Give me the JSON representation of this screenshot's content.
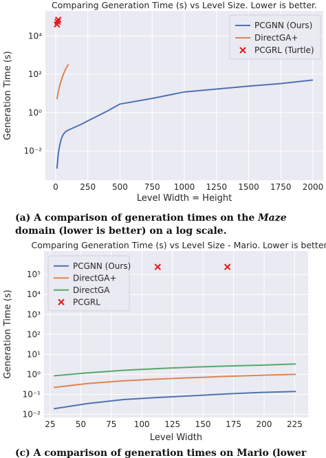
{
  "colors": {
    "plot_bg": "#eaeaf2",
    "grid": "#ffffff",
    "blue": "#4c72b0",
    "orange": "#dd8452",
    "green": "#55a868",
    "red": "#e41a1c",
    "text": "#262626"
  },
  "chart_data": [
    {
      "type": "line",
      "title": "Comparing Generation Time (s) vs Level Size. Lower is better.",
      "xlabel": "Level Width = Height",
      "ylabel": "Generation Time (s)",
      "yscale": "log",
      "xlim": [
        -80,
        2080
      ],
      "ylim": [
        0.0003,
        200000
      ],
      "xticks": [
        0,
        250,
        500,
        750,
        1000,
        1250,
        1500,
        1750,
        2000
      ],
      "xtick_labels": [
        "0",
        "250",
        "500",
        "750",
        "1000",
        "1250",
        "1500",
        "1750",
        "2000"
      ],
      "yticks": [
        0.01,
        1,
        100,
        10000
      ],
      "ytick_labels": [
        "10⁻²",
        "10⁰",
        "10²",
        "10⁴"
      ],
      "grid": true,
      "legend_position": "top-right",
      "series": [
        {
          "name": "PCGNN (Ours)",
          "color": "#4c72b0",
          "style": "line",
          "x": [
            10,
            15,
            20,
            30,
            40,
            50,
            60,
            70,
            80,
            90,
            100,
            200,
            300,
            400,
            500,
            750,
            1000,
            1250,
            1500,
            1750,
            2000
          ],
          "y": [
            0.0012,
            0.003,
            0.007,
            0.018,
            0.035,
            0.055,
            0.075,
            0.09,
            0.105,
            0.115,
            0.125,
            0.25,
            0.55,
            1.2,
            2.8,
            5.5,
            12,
            17,
            24,
            33,
            50
          ]
        },
        {
          "name": "DirectGA+",
          "color": "#dd8452",
          "style": "line",
          "x": [
            10,
            20,
            30,
            40,
            50,
            60,
            70,
            80,
            90,
            100
          ],
          "y": [
            5,
            12,
            24,
            40,
            65,
            100,
            145,
            200,
            260,
            330
          ]
        },
        {
          "name": "PCGRL (Turtle)",
          "color": "#e41a1c",
          "style": "marker",
          "x": [
            10,
            15,
            20
          ],
          "y": [
            40000,
            55000,
            70000
          ]
        }
      ]
    },
    {
      "type": "line",
      "title": "Comparing Generation Time (s) vs Level Size - Mario. Lower is better.",
      "xlabel": "Level Width",
      "ylabel": "Generation Time (s)",
      "yscale": "log",
      "xlim": [
        20,
        236
      ],
      "ylim": [
        0.007,
        1500000
      ],
      "xticks": [
        25,
        50,
        75,
        100,
        125,
        150,
        175,
        200,
        225
      ],
      "xtick_labels": [
        "25",
        "50",
        "75",
        "100",
        "125",
        "150",
        "175",
        "200",
        "225"
      ],
      "yticks": [
        0.01,
        0.1,
        1,
        10,
        100,
        1000,
        10000,
        100000
      ],
      "ytick_labels": [
        "10⁻²",
        "10⁻¹",
        "10⁰",
        "10¹",
        "10²",
        "10³",
        "10⁴",
        "10⁵"
      ],
      "grid": true,
      "legend_position": "top-left",
      "series": [
        {
          "name": "PCGNN (Ours)",
          "color": "#4c72b0",
          "style": "line",
          "x": [
            28,
            56,
            85,
            113,
            141,
            170,
            198,
            226
          ],
          "y": [
            0.019,
            0.035,
            0.055,
            0.07,
            0.085,
            0.105,
            0.125,
            0.14
          ]
        },
        {
          "name": "DirectGA+",
          "color": "#dd8452",
          "style": "line",
          "x": [
            28,
            56,
            85,
            113,
            141,
            170,
            198,
            226
          ],
          "y": [
            0.22,
            0.35,
            0.48,
            0.58,
            0.68,
            0.8,
            0.9,
            1.0
          ]
        },
        {
          "name": "DirectGA",
          "color": "#55a868",
          "style": "line",
          "x": [
            28,
            56,
            85,
            113,
            141,
            170,
            198,
            226
          ],
          "y": [
            0.85,
            1.2,
            1.6,
            1.95,
            2.3,
            2.6,
            2.9,
            3.3
          ]
        },
        {
          "name": "PCGRL",
          "color": "#e41a1c",
          "style": "marker",
          "x": [
            113,
            170
          ],
          "y": [
            240000,
            240000
          ]
        }
      ]
    }
  ],
  "captions": {
    "a_label": "(a) ",
    "a_text1": "A comparison of generation times on the ",
    "a_domain": "Maze",
    "a_text2": " domain (lower is better) on a log scale.",
    "b_text": "(c) A comparison of generation times on Mario (lower is better)"
  }
}
